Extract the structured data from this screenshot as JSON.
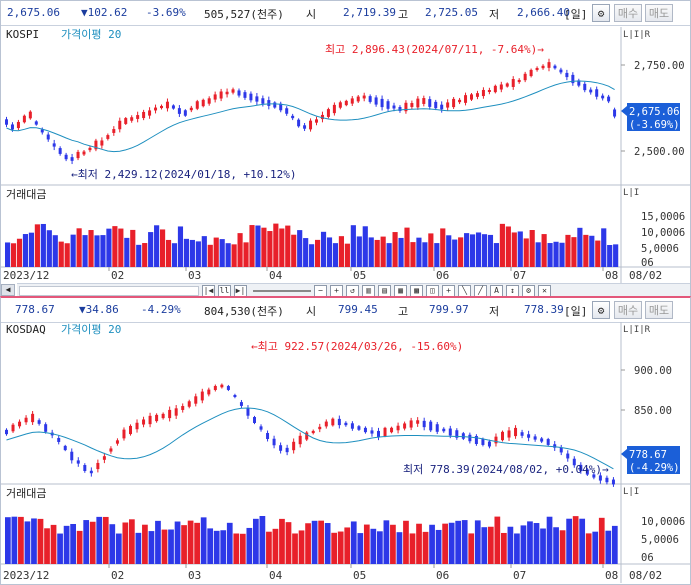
{
  "kospi": {
    "price": "2,675.06",
    "change": "▼102.62",
    "pct": "-3.69%",
    "volume": "505,527(천주)",
    "open_label": "시",
    "open": "2,719.39",
    "high_label": "고",
    "high": "2,725.05",
    "low_label": "저",
    "low": "2,666.40",
    "period": "[일]",
    "buy": "매수",
    "sell": "매도",
    "name": "KOSPI",
    "ma_label": "가격이평 20",
    "max_annot": "최고 2,896.43(2024/07/11, -7.64%)",
    "min_annot": "최저 2,429.12(2024/01/18, +10.12%)",
    "y_ticks": [
      "2,750.00",
      "2,500.00"
    ],
    "current_value": "2,675.06",
    "current_pct": "(-3.69%)",
    "volume_label": "거래대금",
    "vol_ticks": [
      "15,0006",
      "10,0006",
      "5,0006",
      "06"
    ],
    "x_labels": [
      "2023/12",
      "02",
      "03",
      "04",
      "05",
      "06",
      "07",
      "08",
      "08/02"
    ]
  },
  "kosdaq": {
    "price": "778.67",
    "change": "▼34.86",
    "pct": "-4.29%",
    "volume": "804,530(천주)",
    "open_label": "시",
    "open": "799.45",
    "high_label": "고",
    "high": "799.97",
    "low_label": "저",
    "low": "778.39",
    "period": "[일]",
    "buy": "매수",
    "sell": "매도",
    "name": "KOSDAQ",
    "ma_label": "가격이평 20",
    "max_annot": "최고 922.57(2024/03/26, -15.60%)",
    "min_annot": "최저 778.39(2024/08/02, +0.04%)",
    "y_ticks": [
      "900.00",
      "850.00"
    ],
    "current_value": "778.67",
    "current_pct": "(-4.29%)",
    "volume_label": "거래대금",
    "vol_ticks": [
      "10,0006",
      "5,0006",
      "06"
    ],
    "x_labels": [
      "2023/12",
      "02",
      "03",
      "04",
      "05",
      "06",
      "07",
      "08",
      "08/02"
    ]
  },
  "colors": {
    "up": "#e8202a",
    "down": "#2d38e8",
    "ma": "#1e8fbf",
    "accent": "#1b5fd8",
    "axis_text": "#333333"
  }
}
